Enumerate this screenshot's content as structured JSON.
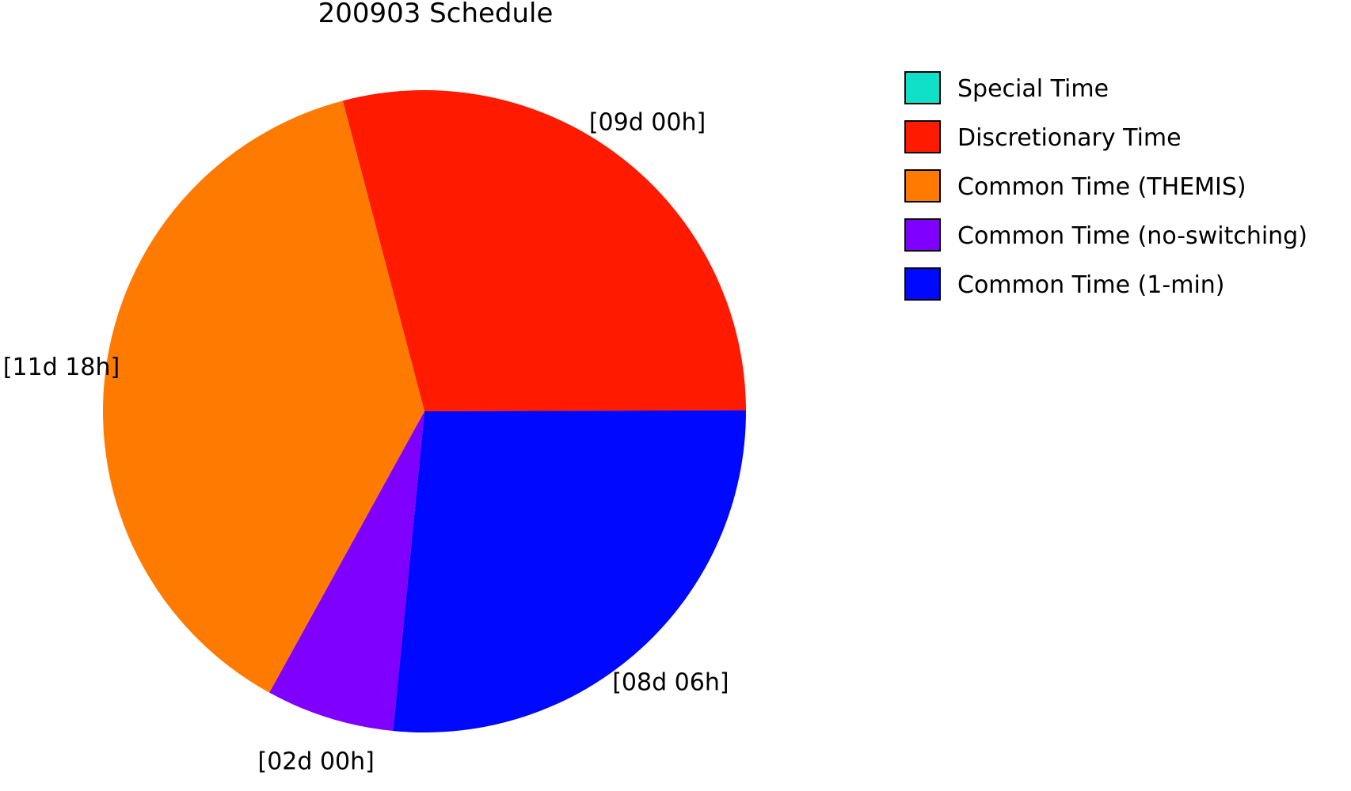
{
  "chart_data": {
    "type": "pie",
    "title": "200903 Schedule",
    "slices": [
      {
        "name": "Special Time",
        "value": 0,
        "label": "",
        "color": "#10e0c8"
      },
      {
        "name": "Discretionary Time",
        "value": 216,
        "label": "[09d 00h]",
        "color": "#ff1a00"
      },
      {
        "name": "Common Time (THEMIS)",
        "value": 282,
        "label": "[11d 18h]",
        "color": "#ff7a00"
      },
      {
        "name": "Common Time (no-switching)",
        "value": 48,
        "label": "[02d 00h]",
        "color": "#7f00ff"
      },
      {
        "name": "Common Time (1-min)",
        "value": 198,
        "label": "[08d 06h]",
        "color": "#0008ff"
      }
    ],
    "legend_position": "top-right"
  }
}
